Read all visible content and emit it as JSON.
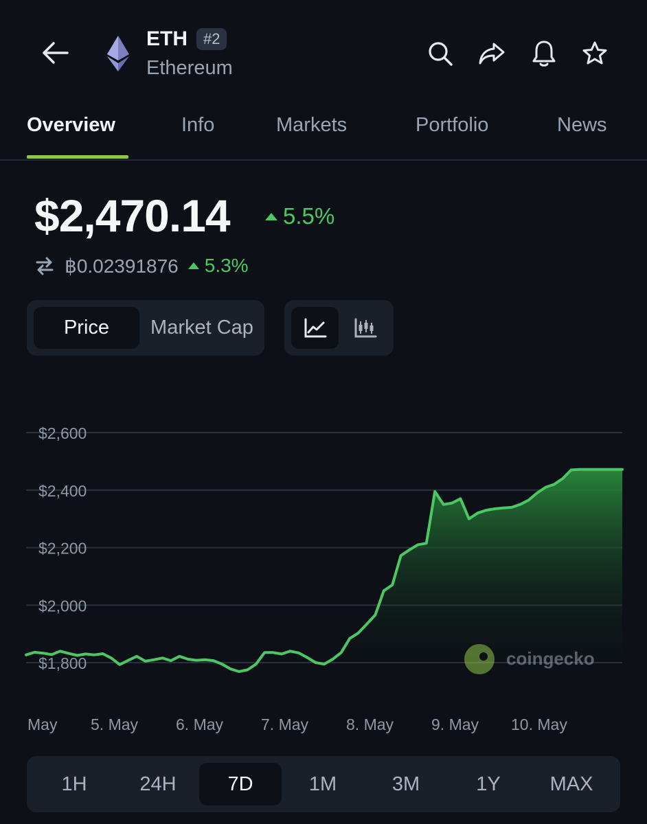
{
  "header": {
    "symbol": "ETH",
    "rank": "#2",
    "name": "Ethereum",
    "icons": [
      "back-arrow-icon",
      "search-icon",
      "share-icon",
      "bell-icon",
      "star-icon"
    ]
  },
  "tabs": [
    {
      "label": "Overview",
      "active": true
    },
    {
      "label": "Info"
    },
    {
      "label": "Markets"
    },
    {
      "label": "Portfolio"
    },
    {
      "label": "News"
    }
  ],
  "price": {
    "usd": "$2,470.14",
    "usd_change": "5.5%",
    "btc": "฿0.02391876",
    "btc_change": "5.3%"
  },
  "toggles": {
    "metric": [
      "Price",
      "Market Cap"
    ],
    "metric_selected": "Price",
    "chart_style": [
      "line-chart-icon",
      "candlestick-chart-icon"
    ],
    "chart_style_selected": "line-chart-icon"
  },
  "watermark": "coingecko",
  "colors": {
    "accent": "#8dc647",
    "positive": "#4cc764",
    "background": "#0d1117"
  },
  "chart_data": {
    "type": "area",
    "yticks": [
      "$2,600",
      "$2,400",
      "$2,200",
      "$2,000",
      "$1,800"
    ],
    "ytick_values": [
      2600,
      2400,
      2200,
      2000,
      1800
    ],
    "xticks": [
      "May",
      "5. May",
      "6. May",
      "7. May",
      "8. May",
      "9. May",
      "10. May"
    ],
    "ylim": [
      1800,
      2600
    ],
    "grid": true,
    "x": [
      0,
      0.1,
      0.2,
      0.3,
      0.4,
      0.5,
      0.6,
      0.7,
      0.8,
      0.9,
      1.0,
      1.1,
      1.2,
      1.3,
      1.4,
      1.5,
      1.6,
      1.7,
      1.8,
      1.9,
      2.0,
      2.1,
      2.2,
      2.3,
      2.4,
      2.5,
      2.6,
      2.7,
      2.8,
      2.9,
      3.0,
      3.1,
      3.2,
      3.3,
      3.4,
      3.5,
      3.6,
      3.7,
      3.8,
      3.9,
      4.0,
      4.1,
      4.2,
      4.3,
      4.4,
      4.5,
      4.6,
      4.7,
      4.8,
      4.9,
      5.0,
      5.1,
      5.2,
      5.3,
      5.4,
      5.5,
      5.6,
      5.7,
      5.8,
      5.9,
      6.0,
      6.1,
      6.2,
      6.3,
      6.4,
      6.5,
      6.6,
      6.7,
      6.8,
      6.9,
      7.0
    ],
    "values": [
      1827,
      1836,
      1833,
      1828,
      1840,
      1832,
      1825,
      1830,
      1827,
      1831,
      1816,
      1793,
      1808,
      1822,
      1805,
      1810,
      1816,
      1807,
      1822,
      1812,
      1808,
      1810,
      1807,
      1795,
      1778,
      1769,
      1775,
      1795,
      1835,
      1835,
      1830,
      1840,
      1834,
      1818,
      1800,
      1795,
      1812,
      1835,
      1884,
      1903,
      1934,
      1966,
      2050,
      2070,
      2172,
      2192,
      2210,
      2215,
      2395,
      2350,
      2355,
      2370,
      2300,
      2320,
      2330,
      2335,
      2338,
      2340,
      2350,
      2365,
      2390,
      2410,
      2420,
      2440,
      2470,
      2472,
      2472,
      2472,
      2472,
      2472,
      2472
    ]
  },
  "ranges": [
    "1H",
    "24H",
    "7D",
    "1M",
    "3M",
    "1Y",
    "MAX"
  ],
  "range_selected": "7D"
}
